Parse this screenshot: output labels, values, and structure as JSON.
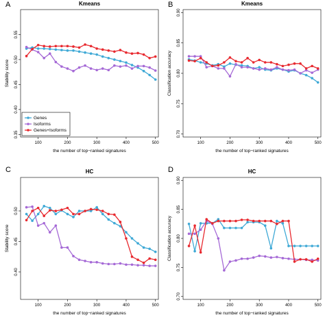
{
  "colors": {
    "Genes": "#3fa9d6",
    "Isoforms": "#a569d6",
    "Genes+Isoforms": "#e8292f"
  },
  "chart_data": [
    {
      "type": "line",
      "panel_label": "A",
      "title": "Kmeans",
      "xlabel": "the number of top−ranked signatures",
      "ylabel": "Stability score",
      "xlim": [
        40,
        510
      ],
      "ylim": [
        0.345,
        0.6
      ],
      "x_ticks": [
        100,
        200,
        300,
        400,
        500
      ],
      "y_ticks": [
        0.35,
        0.4,
        0.45,
        0.5,
        0.55
      ],
      "y_tick_labels": [
        "0.35",
        "0.40",
        "0.45",
        "0.50",
        "0.55"
      ],
      "legend": {
        "position": "bottom-left",
        "entries": [
          "Genes",
          "Isoforms",
          "Genes+Isoforms"
        ]
      },
      "x": [
        60,
        80,
        100,
        120,
        140,
        160,
        180,
        200,
        220,
        240,
        260,
        280,
        300,
        320,
        340,
        360,
        380,
        400,
        420,
        440,
        460,
        480,
        500
      ],
      "series": [
        {
          "name": "Genes",
          "values": [
            0.522,
            0.524,
            0.522,
            0.522,
            0.521,
            0.52,
            0.519,
            0.518,
            0.518,
            0.516,
            0.514,
            0.512,
            0.51,
            0.506,
            0.503,
            0.5,
            0.497,
            0.494,
            0.489,
            0.484,
            0.477,
            0.469,
            0.46
          ]
        },
        {
          "name": "Isoforms",
          "values": [
            0.525,
            0.52,
            0.515,
            0.503,
            0.512,
            0.495,
            0.486,
            0.482,
            0.477,
            0.484,
            0.488,
            0.482,
            0.479,
            0.482,
            0.479,
            0.488,
            0.486,
            0.488,
            0.482,
            0.487,
            0.487,
            0.484,
            0.478
          ]
        },
        {
          "name": "Genes+Isoforms",
          "values": [
            0.507,
            0.521,
            0.529,
            0.527,
            0.526,
            0.527,
            0.527,
            0.527,
            0.526,
            0.524,
            0.53,
            0.527,
            0.522,
            0.52,
            0.518,
            0.516,
            0.519,
            0.514,
            0.512,
            0.513,
            0.51,
            0.503,
            0.506
          ]
        }
      ]
    },
    {
      "type": "line",
      "panel_label": "B",
      "title": "Kmeans",
      "xlabel": "the number of top−ranked signatures",
      "ylabel": "Classification accuracy",
      "xlim": [
        40,
        510
      ],
      "ylim": [
        0.695,
        0.905
      ],
      "x_ticks": [
        100,
        200,
        300,
        400,
        500
      ],
      "y_ticks": [
        0.7,
        0.75,
        0.8,
        0.85,
        0.9
      ],
      "y_tick_labels": [
        "0.70",
        "0.75",
        "0.80",
        "0.85",
        "0.90"
      ],
      "x": [
        60,
        80,
        100,
        120,
        140,
        160,
        180,
        200,
        220,
        240,
        260,
        280,
        300,
        320,
        340,
        360,
        380,
        400,
        420,
        440,
        460,
        480,
        500
      ],
      "series": [
        {
          "name": "Genes",
          "values": [
            0.823,
            0.821,
            0.818,
            0.816,
            0.813,
            0.815,
            0.811,
            0.816,
            0.814,
            0.813,
            0.812,
            0.808,
            0.81,
            0.806,
            0.805,
            0.808,
            0.806,
            0.803,
            0.805,
            0.8,
            0.797,
            0.792,
            0.785
          ]
        },
        {
          "name": "Isoforms",
          "values": [
            0.828,
            0.828,
            0.828,
            0.81,
            0.812,
            0.808,
            0.808,
            0.795,
            0.815,
            0.81,
            0.81,
            0.808,
            0.806,
            0.808,
            0.806,
            0.81,
            0.806,
            0.805,
            0.806,
            0.8,
            0.805,
            0.801,
            0.806
          ]
        },
        {
          "name": "Genes+Isoforms",
          "values": [
            0.821,
            0.82,
            0.825,
            0.818,
            0.812,
            0.813,
            0.818,
            0.826,
            0.82,
            0.818,
            0.825,
            0.818,
            0.822,
            0.818,
            0.818,
            0.815,
            0.812,
            0.814,
            0.816,
            0.816,
            0.808,
            0.812,
            0.808
          ]
        }
      ]
    },
    {
      "type": "line",
      "panel_label": "C",
      "title": "HC",
      "xlabel": "the number of top−ranked signatures",
      "ylabel": "Stability score",
      "xlim": [
        40,
        510
      ],
      "ylim": [
        0.355,
        0.555
      ],
      "x_ticks": [
        100,
        200,
        300,
        400,
        500
      ],
      "y_ticks": [
        0.4,
        0.45,
        0.5
      ],
      "y_tick_labels": [
        "0.40",
        "0.45",
        "0.50"
      ],
      "x": [
        60,
        80,
        100,
        120,
        140,
        160,
        180,
        200,
        220,
        240,
        260,
        280,
        300,
        320,
        340,
        360,
        380,
        400,
        420,
        440,
        460,
        480,
        500
      ],
      "series": [
        {
          "name": "Genes",
          "values": [
            0.495,
            0.484,
            0.495,
            0.508,
            0.505,
            0.495,
            0.501,
            0.495,
            0.49,
            0.5,
            0.5,
            0.5,
            0.506,
            0.495,
            0.486,
            0.48,
            0.475,
            0.465,
            0.455,
            0.447,
            0.44,
            0.438,
            0.433
          ]
        },
        {
          "name": "Isoforms",
          "values": [
            0.506,
            0.507,
            0.476,
            0.48,
            0.465,
            0.476,
            0.44,
            0.44,
            0.426,
            0.42,
            0.418,
            0.416,
            0.416,
            0.414,
            0.413,
            0.413,
            0.414,
            0.412,
            0.412,
            0.411,
            0.411,
            0.41,
            0.41
          ]
        },
        {
          "name": "Genes+Isoforms",
          "values": [
            0.485,
            0.5,
            0.505,
            0.492,
            0.501,
            0.5,
            0.502,
            0.505,
            0.495,
            0.495,
            0.5,
            0.503,
            0.502,
            0.5,
            0.495,
            0.494,
            0.482,
            0.455,
            0.425,
            0.42,
            0.415,
            0.422,
            0.42
          ]
        }
      ]
    },
    {
      "type": "line",
      "panel_label": "D",
      "title": "HC",
      "xlabel": "the number of top−ranked signatures",
      "ylabel": "Classification accuracy",
      "xlim": [
        40,
        510
      ],
      "ylim": [
        0.695,
        0.905
      ],
      "x_ticks": [
        100,
        200,
        300,
        400,
        500
      ],
      "y_ticks": [
        0.7,
        0.75,
        0.8,
        0.85,
        0.9
      ],
      "y_tick_labels": [
        "0.70",
        "0.75",
        "0.80",
        "0.85",
        "0.90"
      ],
      "x": [
        60,
        80,
        100,
        120,
        140,
        160,
        180,
        200,
        220,
        240,
        260,
        280,
        300,
        320,
        340,
        360,
        380,
        400,
        420,
        440,
        460,
        480,
        500
      ],
      "series": [
        {
          "name": "Genes",
          "values": [
            0.825,
            0.778,
            0.826,
            0.826,
            0.826,
            0.833,
            0.818,
            0.818,
            0.818,
            0.818,
            0.828,
            0.828,
            0.828,
            0.822,
            0.783,
            0.83,
            0.826,
            0.787,
            0.787,
            0.787,
            0.787,
            0.787,
            0.787
          ]
        },
        {
          "name": "Isoforms",
          "values": [
            0.808,
            0.808,
            0.815,
            0.83,
            0.825,
            0.8,
            0.745,
            0.76,
            0.762,
            0.765,
            0.765,
            0.767,
            0.77,
            0.769,
            0.767,
            0.768,
            0.766,
            0.765,
            0.764,
            0.764,
            0.763,
            0.763,
            0.762
          ]
        },
        {
          "name": "Genes+Isoforms",
          "values": [
            0.787,
            0.822,
            0.776,
            0.833,
            0.826,
            0.83,
            0.83,
            0.83,
            0.83,
            0.832,
            0.832,
            0.83,
            0.83,
            0.83,
            0.83,
            0.825,
            0.83,
            0.83,
            0.76,
            0.764,
            0.764,
            0.76,
            0.765
          ]
        }
      ]
    }
  ]
}
